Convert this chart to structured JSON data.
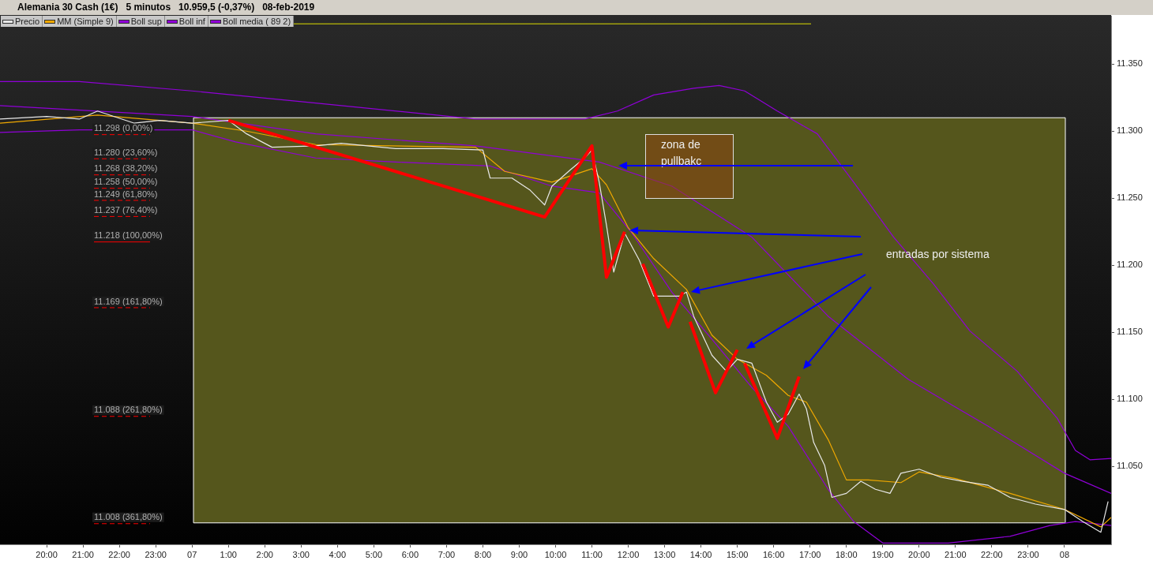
{
  "chart_data": {
    "type": "line",
    "title": "Alemania 30 Cash (1€)   5 minutos   10.959,5 (-0,37%)   08-feb-2019",
    "legend": "top left",
    "grid": false,
    "marker": "none",
    "xlim": [
      "2019-02-06T18:43",
      "2019-02-08T01:17"
    ],
    "ylim": [
      10992,
      11386
    ],
    "xticks": [
      {
        "value": "2019-02-06T20:00",
        "label": "20:00"
      },
      {
        "value": "2019-02-06T21:00",
        "label": "21:00"
      },
      {
        "value": "2019-02-06T22:00",
        "label": "22:00"
      },
      {
        "value": "2019-02-06T23:00",
        "label": "23:00"
      },
      {
        "value": "2019-02-07T00:00",
        "label": "07"
      },
      {
        "value": "2019-02-07T01:00",
        "label": "1:00"
      },
      {
        "value": "2019-02-07T02:00",
        "label": "2:00"
      },
      {
        "value": "2019-02-07T03:00",
        "label": "3:00"
      },
      {
        "value": "2019-02-07T04:00",
        "label": "4:00"
      },
      {
        "value": "2019-02-07T05:00",
        "label": "5:00"
      },
      {
        "value": "2019-02-07T06:00",
        "label": "6:00"
      },
      {
        "value": "2019-02-07T07:00",
        "label": "7:00"
      },
      {
        "value": "2019-02-07T08:00",
        "label": "8:00"
      },
      {
        "value": "2019-02-07T09:00",
        "label": "9:00"
      },
      {
        "value": "2019-02-07T10:00",
        "label": "10:00"
      },
      {
        "value": "2019-02-07T11:00",
        "label": "11:00"
      },
      {
        "value": "2019-02-07T12:00",
        "label": "12:00"
      },
      {
        "value": "2019-02-07T13:00",
        "label": "13:00"
      },
      {
        "value": "2019-02-07T14:00",
        "label": "14:00"
      },
      {
        "value": "2019-02-07T15:00",
        "label": "15:00"
      },
      {
        "value": "2019-02-07T16:00",
        "label": "16:00"
      },
      {
        "value": "2019-02-07T17:00",
        "label": "17:00"
      },
      {
        "value": "2019-02-07T18:00",
        "label": "18:00"
      },
      {
        "value": "2019-02-07T19:00",
        "label": "19:00"
      },
      {
        "value": "2019-02-07T20:00",
        "label": "20:00"
      },
      {
        "value": "2019-02-07T21:00",
        "label": "21:00"
      },
      {
        "value": "2019-02-07T22:00",
        "label": "22:00"
      },
      {
        "value": "2019-02-07T23:00",
        "label": "23:00"
      },
      {
        "value": "2019-02-08T00:00",
        "label": "08"
      }
    ],
    "yticks": [
      {
        "value": 11050,
        "label": "11.050"
      },
      {
        "value": 11100,
        "label": "11.100"
      },
      {
        "value": 11150,
        "label": "11.150"
      },
      {
        "value": 11200,
        "label": "11.200"
      },
      {
        "value": 11250,
        "label": "11.250"
      },
      {
        "value": 11300,
        "label": "11.300"
      },
      {
        "value": 11350,
        "label": "11.350"
      }
    ],
    "series": [
      {
        "name": "Precio",
        "color": "#e8e8e8",
        "x": [
          "2019-02-06T18:43",
          "2019-02-06T20:00",
          "2019-02-06T20:54",
          "2019-02-06T21:24",
          "2019-02-06T22:24",
          "2019-02-06T23:06",
          "2019-02-07T00:00",
          "2019-02-07T01:00",
          "2019-02-07T01:30",
          "2019-02-07T02:12",
          "2019-02-07T03:24",
          "2019-02-07T04:06",
          "2019-02-07T05:36",
          "2019-02-07T06:54",
          "2019-02-07T08:00",
          "2019-02-07T08:12",
          "2019-02-07T08:48",
          "2019-02-07T09:18",
          "2019-02-07T09:42",
          "2019-02-07T09:54",
          "2019-02-07T10:24",
          "2019-02-07T10:48",
          "2019-02-07T11:00",
          "2019-02-07T11:12",
          "2019-02-07T11:24",
          "2019-02-07T11:36",
          "2019-02-07T11:54",
          "2019-02-07T12:18",
          "2019-02-07T12:42",
          "2019-02-07T13:24",
          "2019-02-07T13:36",
          "2019-02-07T13:48",
          "2019-02-07T14:18",
          "2019-02-07T14:42",
          "2019-02-07T15:00",
          "2019-02-07T15:24",
          "2019-02-07T15:48",
          "2019-02-07T16:06",
          "2019-02-07T16:24",
          "2019-02-07T16:42",
          "2019-02-07T16:54",
          "2019-02-07T17:06",
          "2019-02-07T17:24",
          "2019-02-07T17:36",
          "2019-02-07T18:00",
          "2019-02-07T18:24",
          "2019-02-07T18:48",
          "2019-02-07T19:12",
          "2019-02-07T19:30",
          "2019-02-07T20:00",
          "2019-02-07T20:36",
          "2019-02-07T21:12",
          "2019-02-07T21:54",
          "2019-02-07T22:30",
          "2019-02-07T23:12",
          "2019-02-08T00:00",
          "2019-02-08T00:30",
          "2019-02-08T01:00",
          "2019-02-08T01:12"
        ],
        "values": [
          11309,
          11311,
          11309,
          11315,
          11306,
          11308,
          11306,
          11308,
          11298,
          11288,
          11289,
          11291,
          11287,
          11287,
          11286,
          11265,
          11265,
          11256,
          11245,
          11259,
          11271,
          11280,
          11286,
          11262,
          11230,
          11195,
          11224,
          11204,
          11177,
          11177,
          11180,
          11162,
          11133,
          11121,
          11130,
          11127,
          11098,
          11083,
          11089,
          11104,
          11093,
          11068,
          11051,
          11027,
          11030,
          11039,
          11033,
          11030,
          11045,
          11048,
          11042,
          11039,
          11036,
          11027,
          11022,
          11018,
          11009,
          11001,
          11024
        ]
      },
      {
        "name": "MM (Simple 9)",
        "color": "#f0a800",
        "x": [
          "2019-02-06T18:43",
          "2019-02-06T21:24",
          "2019-02-07T00:00",
          "2019-02-07T01:30",
          "2019-02-07T03:24",
          "2019-02-07T07:48",
          "2019-02-07T08:36",
          "2019-02-07T09:54",
          "2019-02-07T11:00",
          "2019-02-07T11:24",
          "2019-02-07T12:00",
          "2019-02-07T12:42",
          "2019-02-07T13:36",
          "2019-02-07T14:18",
          "2019-02-07T15:00",
          "2019-02-07T15:48",
          "2019-02-07T16:24",
          "2019-02-07T16:54",
          "2019-02-07T17:30",
          "2019-02-07T18:00",
          "2019-02-07T18:36",
          "2019-02-07T19:30",
          "2019-02-07T20:00",
          "2019-02-07T21:00",
          "2019-02-07T22:30",
          "2019-02-08T00:00",
          "2019-02-08T01:00",
          "2019-02-08T01:17"
        ],
        "values": [
          11306,
          11312,
          11306,
          11300,
          11290,
          11288,
          11270,
          11262,
          11272,
          11260,
          11228,
          11205,
          11182,
          11148,
          11130,
          11118,
          11103,
          11098,
          11070,
          11040,
          11040,
          11038,
          11046,
          11041,
          11030,
          11018,
          11005,
          11012
        ]
      },
      {
        "name": "Boll sup",
        "color": "#9000d8",
        "x": [
          "2019-02-06T18:43",
          "2019-02-06T20:54",
          "2019-02-07T00:00",
          "2019-02-07T03:24",
          "2019-02-07T07:48",
          "2019-02-07T10:48",
          "2019-02-07T11:42",
          "2019-02-07T12:42",
          "2019-02-07T13:48",
          "2019-02-07T14:30",
          "2019-02-07T15:12",
          "2019-02-07T16:06",
          "2019-02-07T17:12",
          "2019-02-07T18:12",
          "2019-02-07T19:18",
          "2019-02-07T20:24",
          "2019-02-07T21:24",
          "2019-02-07T22:42",
          "2019-02-07T23:48",
          "2019-02-08T00:18",
          "2019-02-08T00:42",
          "2019-02-08T01:17"
        ],
        "values": [
          11337,
          11337,
          11330,
          11321,
          11309,
          11309,
          11315,
          11327,
          11332,
          11334,
          11330,
          11315,
          11298,
          11262,
          11221,
          11186,
          11151,
          11121,
          11086,
          11062,
          11055,
          11056
        ]
      },
      {
        "name": "Boll inf",
        "color": "#9000d8",
        "x": [
          "2019-02-06T18:43",
          "2019-02-06T20:54",
          "2019-02-07T00:00",
          "2019-02-07T01:12",
          "2019-02-07T03:24",
          "2019-02-07T05:36",
          "2019-02-07T08:12",
          "2019-02-07T09:54",
          "2019-02-07T11:12",
          "2019-02-07T12:06",
          "2019-02-07T13:12",
          "2019-02-07T14:18",
          "2019-02-07T15:24",
          "2019-02-07T16:24",
          "2019-02-07T17:30",
          "2019-02-07T18:12",
          "2019-02-07T19:00",
          "2019-02-07T20:48",
          "2019-02-07T22:30",
          "2019-02-07T23:36",
          "2019-02-08T00:18",
          "2019-02-08T01:17"
        ],
        "values": [
          11299,
          11301,
          11301,
          11292,
          11280,
          11277,
          11274,
          11259,
          11254,
          11224,
          11180,
          11145,
          11109,
          11080,
          11033,
          11009,
          10993,
          10993,
          10998,
          11006,
          11009,
          11006
        ]
      },
      {
        "name": "Boll media ( 89 2)",
        "color": "#9000d8",
        "x": [
          "2019-02-06T18:43",
          "2019-02-07T00:00",
          "2019-02-07T03:24",
          "2019-02-07T07:48",
          "2019-02-07T11:12",
          "2019-02-07T13:12",
          "2019-02-07T15:24",
          "2019-02-07T17:30",
          "2019-02-07T19:42",
          "2019-02-07T21:54",
          "2019-02-08T00:00",
          "2019-02-08T01:17"
        ],
        "values": [
          11319,
          11311,
          11298,
          11289,
          11277,
          11259,
          11221,
          11162,
          11115,
          11080,
          11045,
          11030
        ]
      },
      {
        "color": "#ff0000",
        "x": [
          "2019-02-07T01:00",
          "2019-02-07T09:42",
          "2019-02-07T11:00",
          "2019-02-07T11:24",
          "2019-02-07T11:54"
        ],
        "values": [
          11308,
          11236,
          11289,
          11191,
          11225
        ]
      },
      {
        "color": "#ff0000",
        "x": [
          "2019-02-07T12:24",
          "2019-02-07T13:06",
          "2019-02-07T13:30"
        ],
        "values": [
          11201,
          11154,
          11180
        ]
      },
      {
        "color": "#ff0000",
        "x": [
          "2019-02-07T13:42",
          "2019-02-07T14:24",
          "2019-02-07T15:00"
        ],
        "values": [
          11158,
          11105,
          11137
        ]
      },
      {
        "color": "#ff0000",
        "x": [
          "2019-02-07T15:12",
          "2019-02-07T16:06",
          "2019-02-07T16:42"
        ],
        "values": [
          11127,
          11071,
          11117
        ]
      }
    ],
    "bands": [
      {
        "axis": "y",
        "from": 11008,
        "to": 11310,
        "color": "#55561c"
      }
    ],
    "ref_lines": [
      {
        "axis": "y",
        "value": 11380,
        "color": "#e0e000",
        "line_style": "solid"
      },
      {
        "axis": "y",
        "value": 11298,
        "label": "11.298 (0,00%)",
        "color": "#ff0000",
        "line_style": "dashed"
      },
      {
        "axis": "y",
        "value": 11280,
        "label": "11.280 (23,60%)",
        "color": "#ff0000",
        "line_style": "dashed"
      },
      {
        "axis": "y",
        "value": 11268,
        "label": "11.268 (38,20%)",
        "color": "#ff0000",
        "line_style": "dashed"
      },
      {
        "axis": "y",
        "value": 11258,
        "label": "11.258 (50,00%)",
        "color": "#ff0000",
        "line_style": "dashed"
      },
      {
        "axis": "y",
        "value": 11249,
        "label": "11.249 (61,80%)",
        "color": "#ff0000",
        "line_style": "dashed"
      },
      {
        "axis": "y",
        "value": 11237,
        "label": "11.237 (76,40%)",
        "color": "#ff0000",
        "line_style": "dashed"
      },
      {
        "axis": "y",
        "value": 11218,
        "label": "11.218 (100,00%)",
        "color": "#ff0000",
        "line_style": "solid"
      },
      {
        "axis": "y",
        "value": 11169,
        "label": "11.169 (161,80%)",
        "color": "#ff0000",
        "line_style": "dashed"
      },
      {
        "axis": "y",
        "value": 11088,
        "label": "11.088 (261,80%)",
        "color": "#ff0000",
        "line_style": "dashed"
      },
      {
        "axis": "y",
        "value": 11008,
        "label": "11.008 (361,80%)",
        "color": "#ff0000",
        "line_style": "dashed"
      }
    ],
    "annotations": [
      "zona de pullbakc",
      "entradas por sistema"
    ]
  }
}
